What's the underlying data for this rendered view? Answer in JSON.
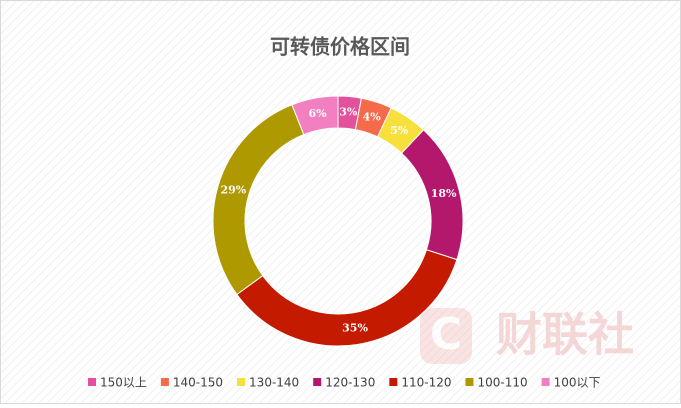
{
  "chart_data": {
    "type": "donut",
    "title": "可转债价格区间",
    "categories": [
      "150以上",
      "140-150",
      "130-140",
      "120-130",
      "110-120",
      "100-110",
      "100以下"
    ],
    "values": [
      3,
      4,
      5,
      18,
      35,
      29,
      6
    ],
    "value_labels": [
      "3%",
      "4%",
      "5%",
      "18%",
      "35%",
      "29%",
      "6%"
    ],
    "colors": [
      "#e3509b",
      "#f46a4b",
      "#f7e03c",
      "#b3186c",
      "#c41a00",
      "#ae9900",
      "#f280c0"
    ],
    "legend": "bottom",
    "watermark": "财联社"
  }
}
